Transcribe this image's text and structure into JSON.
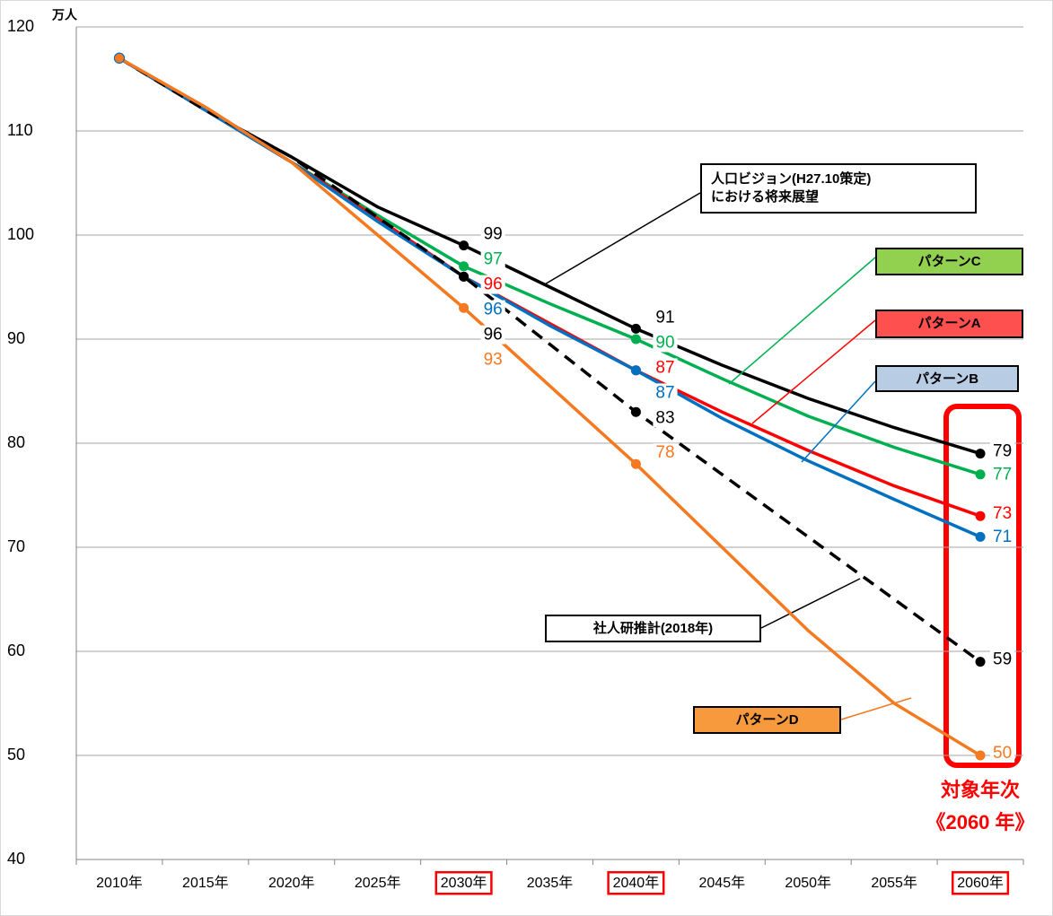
{
  "chart_data": {
    "type": "line",
    "y_unit": "万人",
    "categories": [
      "2010年",
      "2015年",
      "2020年",
      "2025年",
      "2030年",
      "2035年",
      "2040年",
      "2045年",
      "2050年",
      "2055年",
      "2060年"
    ],
    "ylim": [
      40,
      120
    ],
    "yticks": [
      40,
      50,
      60,
      70,
      80,
      90,
      100,
      110,
      120
    ],
    "grid": true,
    "series": [
      {
        "name": "人口ビジョン(H27.10策定)\nにおける将来展望",
        "color": "#000000",
        "values": [
          117,
          112,
          107.5,
          102.7,
          99,
          95,
          91,
          87.5,
          84.3,
          81.5,
          79
        ]
      },
      {
        "name": "パターンC",
        "color": "#00b050",
        "values": [
          117,
          112,
          107,
          101.9,
          97,
          93.4,
          90,
          86.2,
          82.6,
          79.6,
          77
        ]
      },
      {
        "name": "パターンA",
        "color": "#ff0000",
        "values": [
          117,
          112,
          107,
          101.6,
          96,
          91.5,
          87,
          83,
          79.3,
          75.9,
          73
        ]
      },
      {
        "name": "パターンB",
        "color": "#0070c0",
        "values": [
          117,
          112,
          107,
          101.3,
          96,
          91.3,
          87,
          82.4,
          78.3,
          74.6,
          71
        ]
      },
      {
        "name": "社人研推計(2018年)",
        "color": "#000000",
        "dashed": true,
        "values": [
          117,
          112,
          107.5,
          101.7,
          96,
          89.5,
          83,
          77,
          71,
          65,
          59
        ]
      },
      {
        "name": "パターンD",
        "color": "#f47920",
        "values": [
          117,
          112.3,
          107,
          100,
          93,
          85.5,
          78,
          70,
          62,
          55,
          50
        ]
      }
    ],
    "annotations": [
      "対象年次",
      "《2060 年》"
    ]
  }
}
